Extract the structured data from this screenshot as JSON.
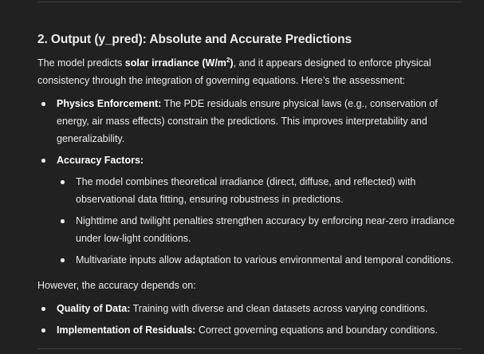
{
  "section": {
    "heading": "2. Output (y_pred): Absolute and Accurate Predictions",
    "intro": {
      "prefix": "The model predicts ",
      "bold": "solar irradiance (W/m",
      "sup": "2",
      "bold_end": ")",
      "suffix": ", and it appears designed to enforce physical consistency through the integration of governing equations. Here’s the assessment:"
    },
    "bullets": [
      {
        "title": "Physics Enforcement:",
        "text": " The PDE residuals ensure physical laws (e.g., conservation of energy, air mass effects) constrain the predictions. This improves interpretability and generalizability."
      },
      {
        "title": "Accuracy Factors:",
        "text": "",
        "sub": [
          "The model combines theoretical irradiance (direct, diffuse, and reflected) with observational data fitting, ensuring robustness in predictions.",
          "Nighttime and twilight penalties strengthen accuracy by enforcing near-zero irradiance under low-light conditions.",
          "Multivariate inputs allow adaptation to various environmental and temporal conditions."
        ]
      }
    ],
    "however": "However, the accuracy depends on:",
    "depends": [
      {
        "title": "Quality of Data:",
        "text": " Training with diverse and clean datasets across varying conditions."
      },
      {
        "title": "Implementation of Residuals:",
        "text": " Correct governing equations and boundary conditions."
      }
    ]
  }
}
